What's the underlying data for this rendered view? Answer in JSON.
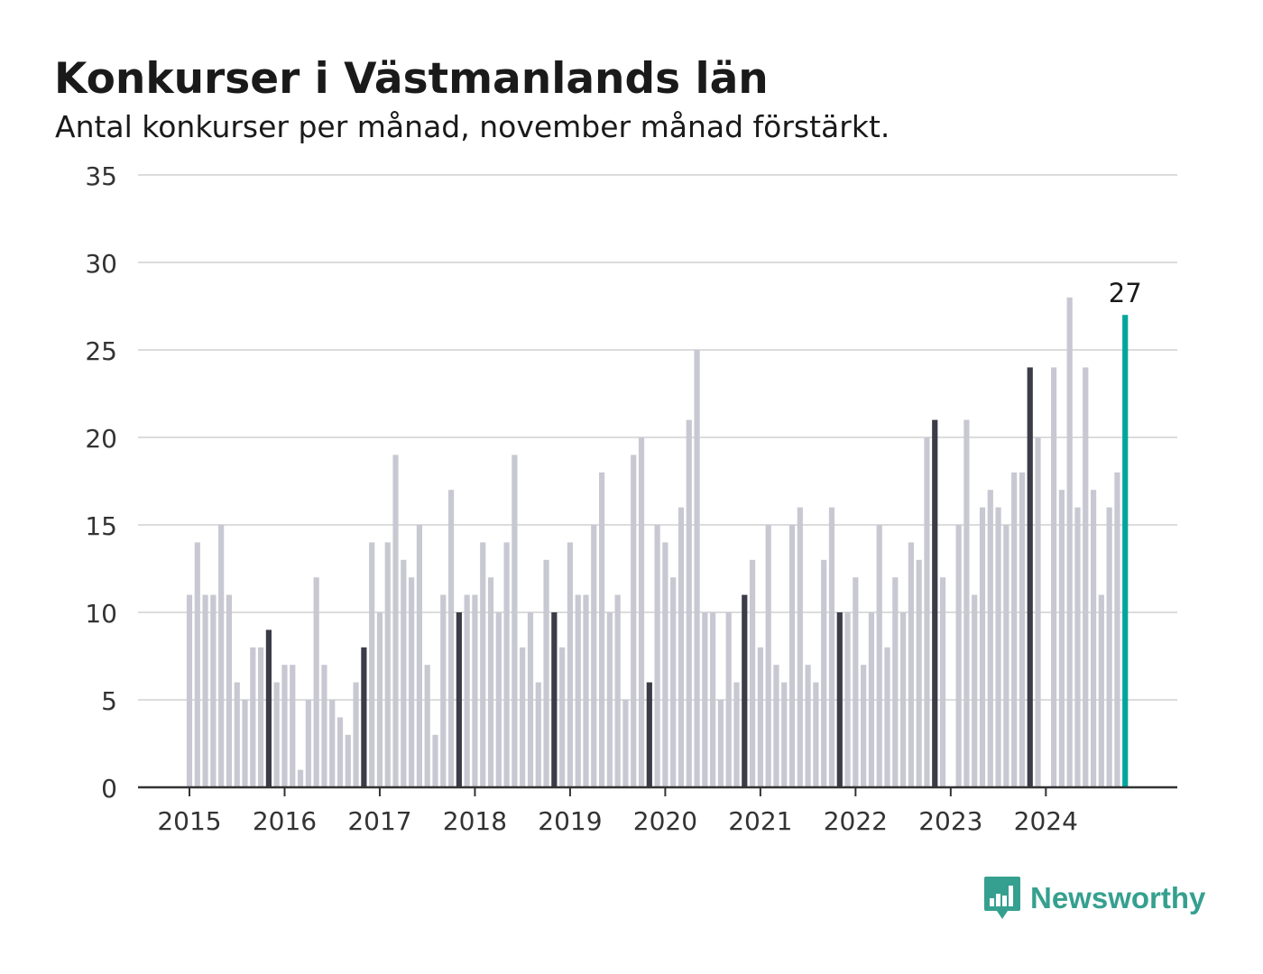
{
  "title": "Konkurser i Västmanlands län",
  "subtitle": "Antal konkurser per månad, november månad förstärkt.",
  "brand": {
    "name": "Newsworthy",
    "icon": "bar-chart-speech-bubble-icon",
    "color": "#35a08f"
  },
  "colors": {
    "bar": "#c8c8d2",
    "bar_highlight": "#3c3c48",
    "bar_latest": "#00a69c",
    "grid": "#dcdcdc",
    "axis": "#333333"
  },
  "chart_data": {
    "type": "bar",
    "title": "Konkurser i Västmanlands län",
    "subtitle": "Antal konkurser per månad, november månad förstärkt.",
    "xlabel": "",
    "ylabel": "",
    "ylim": [
      0,
      35
    ],
    "yticks": [
      0,
      5,
      10,
      15,
      20,
      25,
      30,
      35
    ],
    "grid": true,
    "xticks": [
      "2015",
      "2016",
      "2017",
      "2018",
      "2019",
      "2020",
      "2021",
      "2022",
      "2023",
      "2024"
    ],
    "start_month": "2015-01",
    "end_month": "2024-11",
    "highlighted_month": "november",
    "annotation": {
      "month": "2024-11",
      "label": "27"
    },
    "values": [
      11,
      14,
      11,
      11,
      15,
      11,
      6,
      5,
      8,
      8,
      9,
      6,
      7,
      7,
      1,
      5,
      12,
      7,
      5,
      4,
      3,
      6,
      8,
      14,
      10,
      14,
      19,
      13,
      12,
      15,
      7,
      3,
      11,
      17,
      10,
      11,
      11,
      14,
      12,
      10,
      14,
      19,
      8,
      10,
      6,
      13,
      10,
      8,
      14,
      11,
      11,
      15,
      18,
      10,
      11,
      5,
      19,
      20,
      6,
      15,
      14,
      12,
      16,
      21,
      25,
      10,
      10,
      5,
      10,
      6,
      11,
      13,
      8,
      15,
      7,
      6,
      15,
      16,
      7,
      6,
      13,
      16,
      10,
      10,
      12,
      7,
      10,
      15,
      8,
      12,
      10,
      14,
      13,
      20,
      21,
      12,
      0,
      15,
      21,
      11,
      16,
      17,
      16,
      15,
      18,
      18,
      24,
      20,
      0,
      24,
      17,
      28,
      16,
      24,
      17,
      11,
      16,
      18,
      27
    ]
  }
}
